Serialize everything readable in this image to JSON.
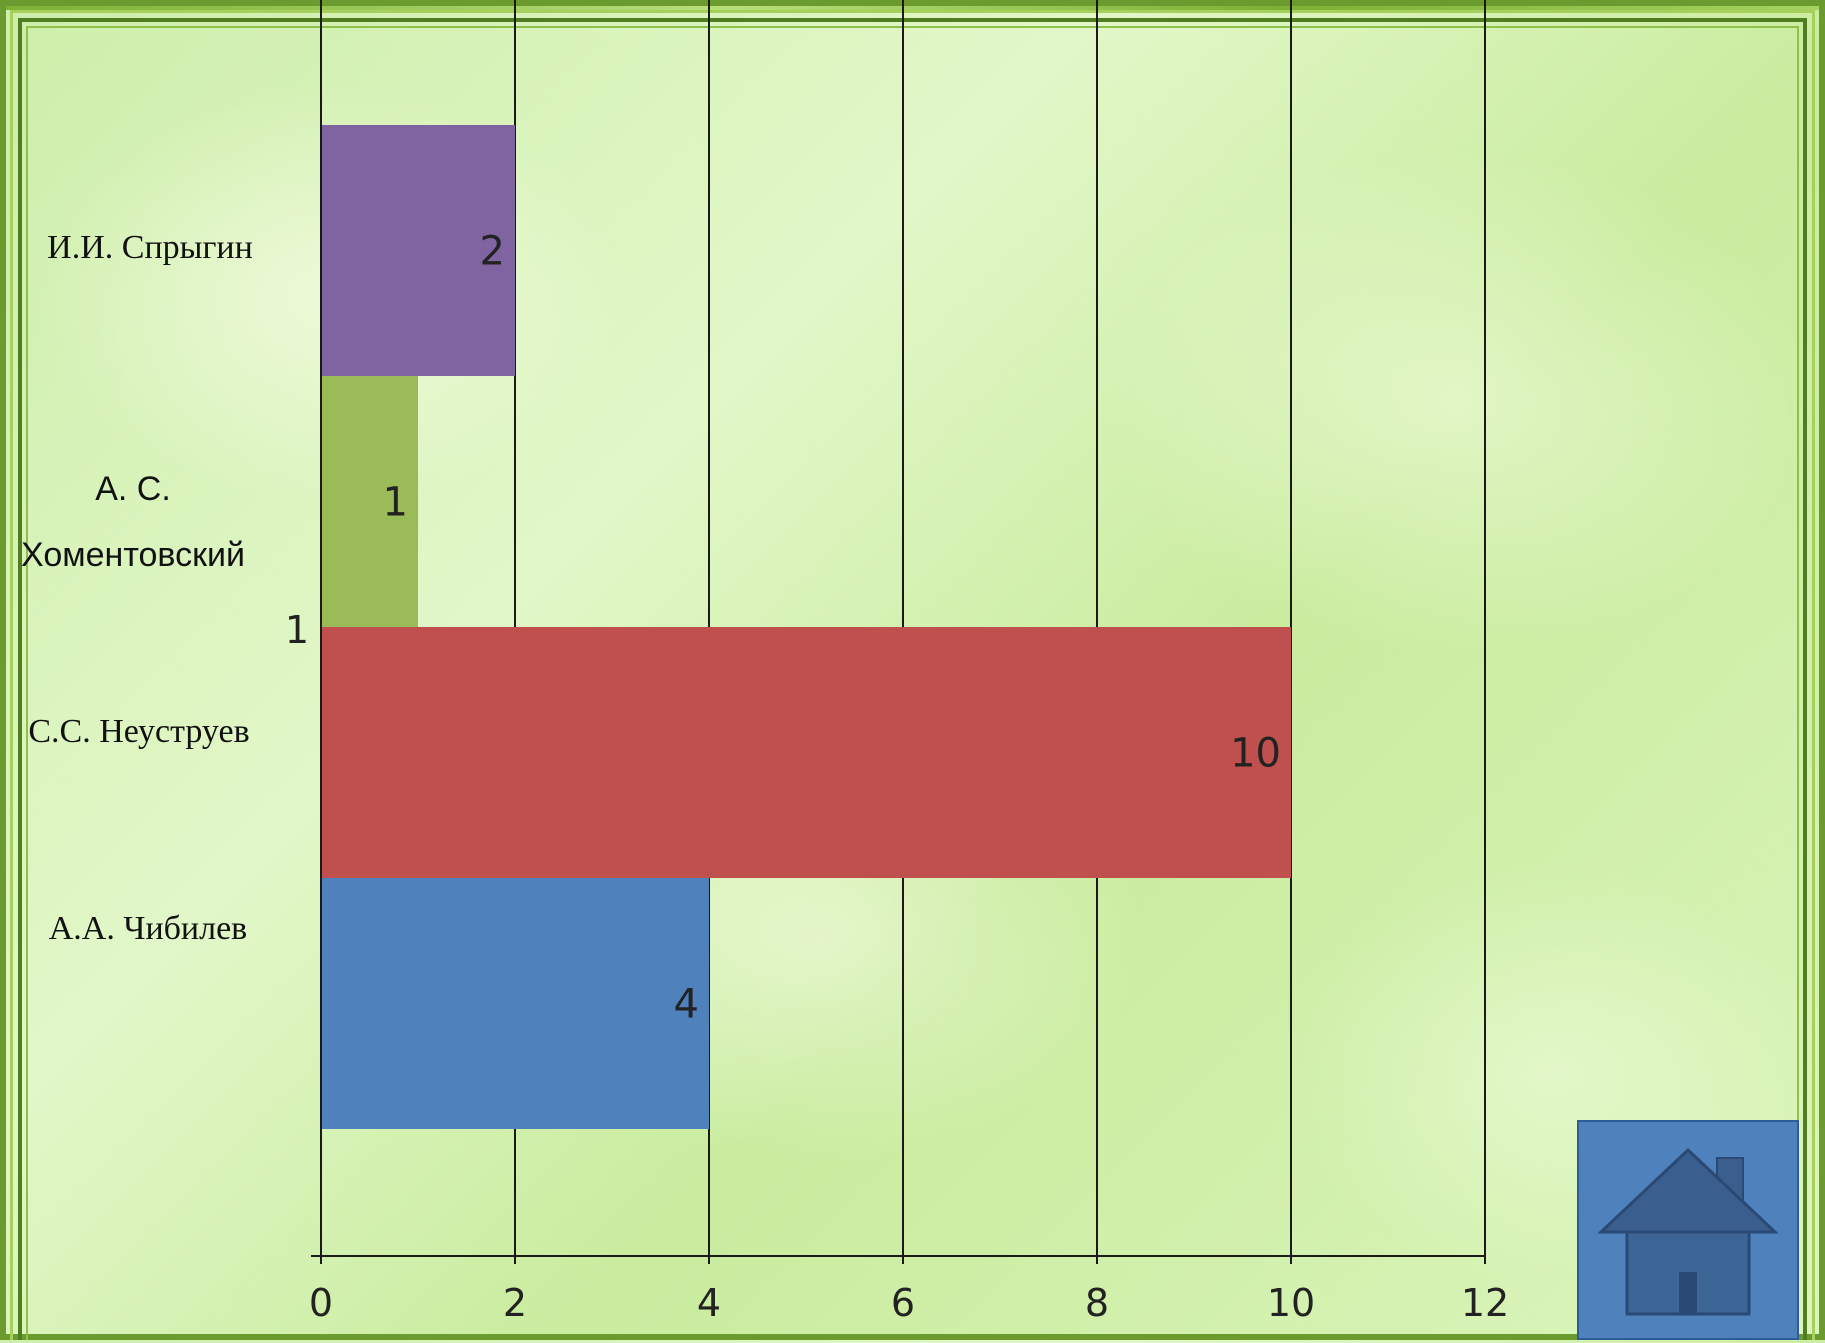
{
  "chart_data": {
    "type": "bar",
    "orientation": "horizontal",
    "categories": [
      "И.И. Спрыгин",
      "А. С. Хоментовский",
      "С.С. Неуструев",
      "А.А. Чибилев"
    ],
    "values": [
      2,
      1,
      10,
      4
    ],
    "data_labels": [
      "2",
      "1",
      "10",
      "4"
    ],
    "bar_colors": [
      "#8064a2",
      "#9bbb59",
      "#c0504d",
      "#4f81bd"
    ],
    "category_label_lines": [
      [
        "И.И. Спрыгин"
      ],
      [
        "А. С.",
        "Хоментовский"
      ],
      [
        "С.С. Неуструев"
      ],
      [
        "А.А. Чибилев"
      ]
    ],
    "stray_axis_label": "1",
    "xlim": [
      0,
      12
    ],
    "xticks": [
      0,
      2,
      4,
      6,
      8,
      10,
      12
    ],
    "tick_labels": [
      "0",
      "2",
      "4",
      "6",
      "8",
      "10",
      "12"
    ],
    "grid": true,
    "legend": "none"
  },
  "home_button": {
    "icon": "home-icon"
  }
}
